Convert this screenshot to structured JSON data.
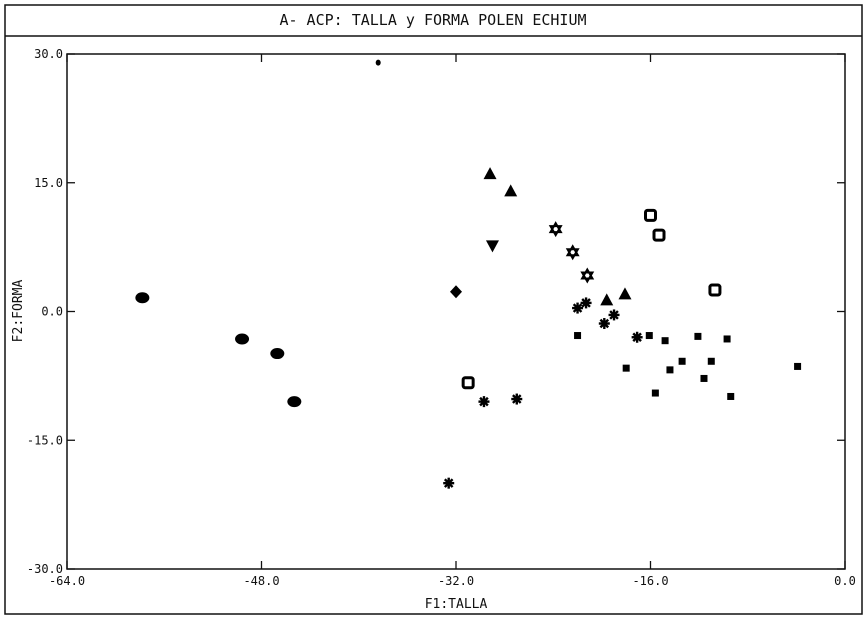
{
  "chart_data": {
    "type": "scatter",
    "title": "A- ACP: TALLA y FORMA POLEN ECHIUM",
    "xlabel": "F1:TALLA",
    "ylabel": "F2:FORMA",
    "xlim": [
      -64.0,
      0.0
    ],
    "ylim": [
      -30.0,
      30.0
    ],
    "xticks": [
      "-64.0",
      "-48.0",
      "-32.0",
      "-16.0",
      "0.0"
    ],
    "yticks": [
      "30.0",
      "15.0",
      "0.0",
      "-15.0",
      "-30.0"
    ],
    "grid": false,
    "series": [
      {
        "marker": "circle",
        "color": "#000000",
        "points": [
          [
            -57.8,
            1.6
          ],
          [
            -49.6,
            -3.2
          ],
          [
            -46.7,
            -4.9
          ],
          [
            -45.3,
            -10.5
          ]
        ]
      },
      {
        "marker": "triangle-up",
        "color": "#000000",
        "points": [
          [
            -29.2,
            16.0
          ],
          [
            -27.5,
            14.0
          ],
          [
            -19.6,
            1.3
          ],
          [
            -18.1,
            2.0
          ]
        ]
      },
      {
        "marker": "triangle-down",
        "color": "#000000",
        "points": [
          [
            -29.0,
            7.7
          ]
        ]
      },
      {
        "marker": "diamond",
        "color": "#000000",
        "points": [
          [
            -32.0,
            2.3
          ]
        ]
      },
      {
        "marker": "open-square",
        "color": "#000000",
        "points": [
          [
            -31.0,
            -8.3
          ],
          [
            -16.0,
            11.2
          ],
          [
            -15.3,
            8.9
          ],
          [
            -10.7,
            2.5
          ]
        ]
      },
      {
        "marker": "star-6",
        "color": "#000000",
        "points": [
          [
            -23.8,
            9.6
          ],
          [
            -22.4,
            6.9
          ],
          [
            -21.2,
            4.2
          ]
        ]
      },
      {
        "marker": "asterisk",
        "color": "#000000",
        "points": [
          [
            -32.6,
            -20.0
          ],
          [
            -29.7,
            -10.5
          ],
          [
            -27.0,
            -10.2
          ],
          [
            -22.0,
            0.4
          ],
          [
            -21.3,
            1.0
          ],
          [
            -19.8,
            -1.4
          ],
          [
            -19.0,
            -0.4
          ],
          [
            -17.1,
            -3.0
          ]
        ]
      },
      {
        "marker": "filled-square",
        "color": "#000000",
        "points": [
          [
            -22.0,
            -2.8
          ],
          [
            -18.0,
            -6.6
          ],
          [
            -16.1,
            -2.8
          ],
          [
            -15.6,
            -9.5
          ],
          [
            -14.8,
            -3.4
          ],
          [
            -14.4,
            -6.8
          ],
          [
            -13.4,
            -5.8
          ],
          [
            -12.1,
            -2.9
          ],
          [
            -11.6,
            -7.8
          ],
          [
            -11.0,
            -5.8
          ],
          [
            -9.7,
            -3.2
          ],
          [
            -9.4,
            -9.9
          ],
          [
            -3.9,
            -6.4
          ]
        ]
      },
      {
        "marker": "dot",
        "color": "#000000",
        "points": [
          [
            -38.4,
            29.0
          ]
        ]
      }
    ]
  }
}
